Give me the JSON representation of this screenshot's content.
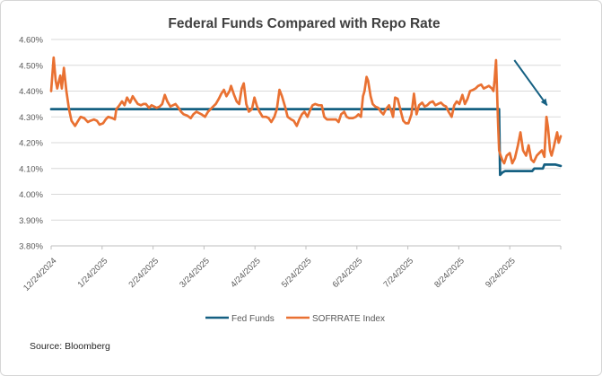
{
  "chart_data": {
    "type": "line",
    "title": "Federal Funds Compared with Repo Rate",
    "source_note": "Source: Bloomberg",
    "xlabel": "",
    "ylabel": "",
    "ylim": [
      3.8,
      4.6
    ],
    "grid": true,
    "legend_position": "bottom",
    "yticks": [
      {
        "value": 4.6,
        "label": "4.60%"
      },
      {
        "value": 4.5,
        "label": "4.50%"
      },
      {
        "value": 4.4,
        "label": "4.40%"
      },
      {
        "value": 4.3,
        "label": "4.30%"
      },
      {
        "value": 4.2,
        "label": "4.20%"
      },
      {
        "value": 4.1,
        "label": "4.10%"
      },
      {
        "value": 4.0,
        "label": "4.00%"
      },
      {
        "value": 3.9,
        "label": "3.90%"
      },
      {
        "value": 3.8,
        "label": "3.80%"
      }
    ],
    "categories": [
      "12/24/2024",
      "1/24/2025",
      "2/24/2025",
      "3/24/2025",
      "4/24/2025",
      "5/24/2025",
      "6/24/2025",
      "7/24/2025",
      "8/24/2025",
      "9/24/2025"
    ],
    "series": [
      {
        "name": "Fed Funds",
        "color": "#156082",
        "points": [
          [
            0.0,
            4.33
          ],
          [
            0.879,
            4.33
          ],
          [
            0.881,
            4.075
          ],
          [
            0.886,
            4.085
          ],
          [
            0.891,
            4.09
          ],
          [
            0.944,
            4.09
          ],
          [
            0.948,
            4.1
          ],
          [
            0.965,
            4.1
          ],
          [
            0.968,
            4.115
          ],
          [
            0.99,
            4.115
          ],
          [
            1.0,
            4.11
          ]
        ]
      },
      {
        "name": "SOFRRATE Index",
        "color": "#E97132",
        "points": [
          [
            0.0,
            4.4
          ],
          [
            0.005,
            4.53
          ],
          [
            0.009,
            4.44
          ],
          [
            0.012,
            4.41
          ],
          [
            0.018,
            4.46
          ],
          [
            0.021,
            4.41
          ],
          [
            0.025,
            4.49
          ],
          [
            0.03,
            4.4
          ],
          [
            0.035,
            4.33
          ],
          [
            0.04,
            4.285
          ],
          [
            0.047,
            4.265
          ],
          [
            0.053,
            4.285
          ],
          [
            0.058,
            4.3
          ],
          [
            0.065,
            4.295
          ],
          [
            0.072,
            4.28
          ],
          [
            0.077,
            4.285
          ],
          [
            0.084,
            4.29
          ],
          [
            0.09,
            4.285
          ],
          [
            0.095,
            4.27
          ],
          [
            0.102,
            4.275
          ],
          [
            0.107,
            4.29
          ],
          [
            0.112,
            4.3
          ],
          [
            0.12,
            4.295
          ],
          [
            0.125,
            4.29
          ],
          [
            0.128,
            4.33
          ],
          [
            0.134,
            4.345
          ],
          [
            0.139,
            4.36
          ],
          [
            0.144,
            4.345
          ],
          [
            0.149,
            4.375
          ],
          [
            0.155,
            4.355
          ],
          [
            0.16,
            4.38
          ],
          [
            0.165,
            4.365
          ],
          [
            0.17,
            4.35
          ],
          [
            0.176,
            4.345
          ],
          [
            0.181,
            4.35
          ],
          [
            0.186,
            4.35
          ],
          [
            0.192,
            4.335
          ],
          [
            0.197,
            4.345
          ],
          [
            0.202,
            4.34
          ],
          [
            0.207,
            4.335
          ],
          [
            0.213,
            4.34
          ],
          [
            0.218,
            4.35
          ],
          [
            0.223,
            4.385
          ],
          [
            0.228,
            4.36
          ],
          [
            0.234,
            4.34
          ],
          [
            0.239,
            4.345
          ],
          [
            0.244,
            4.35
          ],
          [
            0.25,
            4.335
          ],
          [
            0.255,
            4.32
          ],
          [
            0.26,
            4.31
          ],
          [
            0.267,
            4.305
          ],
          [
            0.274,
            4.295
          ],
          [
            0.279,
            4.31
          ],
          [
            0.285,
            4.32
          ],
          [
            0.29,
            4.315
          ],
          [
            0.295,
            4.31
          ],
          [
            0.302,
            4.3
          ],
          [
            0.308,
            4.32
          ],
          [
            0.313,
            4.33
          ],
          [
            0.318,
            4.34
          ],
          [
            0.323,
            4.35
          ],
          [
            0.329,
            4.37
          ],
          [
            0.334,
            4.39
          ],
          [
            0.339,
            4.405
          ],
          [
            0.344,
            4.38
          ],
          [
            0.35,
            4.4
          ],
          [
            0.353,
            4.42
          ],
          [
            0.359,
            4.385
          ],
          [
            0.364,
            4.36
          ],
          [
            0.369,
            4.35
          ],
          [
            0.374,
            4.41
          ],
          [
            0.378,
            4.43
          ],
          [
            0.383,
            4.35
          ],
          [
            0.388,
            4.32
          ],
          [
            0.394,
            4.33
          ],
          [
            0.399,
            4.375
          ],
          [
            0.404,
            4.34
          ],
          [
            0.409,
            4.32
          ],
          [
            0.415,
            4.3
          ],
          [
            0.422,
            4.3
          ],
          [
            0.427,
            4.295
          ],
          [
            0.432,
            4.28
          ],
          [
            0.438,
            4.3
          ],
          [
            0.443,
            4.33
          ],
          [
            0.448,
            4.405
          ],
          [
            0.453,
            4.38
          ],
          [
            0.459,
            4.34
          ],
          [
            0.464,
            4.3
          ],
          [
            0.471,
            4.29
          ],
          [
            0.476,
            4.285
          ],
          [
            0.482,
            4.265
          ],
          [
            0.487,
            4.29
          ],
          [
            0.492,
            4.31
          ],
          [
            0.497,
            4.32
          ],
          [
            0.503,
            4.3
          ],
          [
            0.508,
            4.325
          ],
          [
            0.513,
            4.345
          ],
          [
            0.518,
            4.35
          ],
          [
            0.525,
            4.345
          ],
          [
            0.531,
            4.345
          ],
          [
            0.536,
            4.3
          ],
          [
            0.541,
            4.29
          ],
          [
            0.548,
            4.29
          ],
          [
            0.554,
            4.29
          ],
          [
            0.559,
            4.29
          ],
          [
            0.564,
            4.28
          ],
          [
            0.569,
            4.31
          ],
          [
            0.575,
            4.32
          ],
          [
            0.58,
            4.3
          ],
          [
            0.585,
            4.295
          ],
          [
            0.592,
            4.295
          ],
          [
            0.598,
            4.3
          ],
          [
            0.603,
            4.31
          ],
          [
            0.608,
            4.3
          ],
          [
            0.612,
            4.38
          ],
          [
            0.615,
            4.4
          ],
          [
            0.619,
            4.455
          ],
          [
            0.622,
            4.44
          ],
          [
            0.627,
            4.38
          ],
          [
            0.631,
            4.35
          ],
          [
            0.636,
            4.34
          ],
          [
            0.642,
            4.335
          ],
          [
            0.647,
            4.32
          ],
          [
            0.652,
            4.31
          ],
          [
            0.657,
            4.33
          ],
          [
            0.663,
            4.345
          ],
          [
            0.668,
            4.32
          ],
          [
            0.671,
            4.3
          ],
          [
            0.675,
            4.375
          ],
          [
            0.68,
            4.37
          ],
          [
            0.685,
            4.33
          ],
          [
            0.691,
            4.285
          ],
          [
            0.696,
            4.275
          ],
          [
            0.701,
            4.275
          ],
          [
            0.707,
            4.31
          ],
          [
            0.712,
            4.39
          ],
          [
            0.717,
            4.31
          ],
          [
            0.722,
            4.345
          ],
          [
            0.728,
            4.355
          ],
          [
            0.733,
            4.34
          ],
          [
            0.738,
            4.345
          ],
          [
            0.743,
            4.355
          ],
          [
            0.749,
            4.36
          ],
          [
            0.754,
            4.345
          ],
          [
            0.759,
            4.35
          ],
          [
            0.765,
            4.355
          ],
          [
            0.77,
            4.345
          ],
          [
            0.775,
            4.34
          ],
          [
            0.78,
            4.32
          ],
          [
            0.786,
            4.3
          ],
          [
            0.791,
            4.345
          ],
          [
            0.796,
            4.36
          ],
          [
            0.801,
            4.35
          ],
          [
            0.807,
            4.385
          ],
          [
            0.812,
            4.35
          ],
          [
            0.817,
            4.37
          ],
          [
            0.822,
            4.4
          ],
          [
            0.828,
            4.405
          ],
          [
            0.833,
            4.41
          ],
          [
            0.838,
            4.42
          ],
          [
            0.844,
            4.425
          ],
          [
            0.849,
            4.41
          ],
          [
            0.854,
            4.415
          ],
          [
            0.859,
            4.42
          ],
          [
            0.865,
            4.41
          ],
          [
            0.868,
            4.4
          ],
          [
            0.87,
            4.44
          ],
          [
            0.873,
            4.52
          ],
          [
            0.877,
            4.28
          ],
          [
            0.879,
            4.17
          ],
          [
            0.882,
            4.15
          ],
          [
            0.886,
            4.13
          ],
          [
            0.889,
            4.12
          ],
          [
            0.894,
            4.15
          ],
          [
            0.9,
            4.16
          ],
          [
            0.905,
            4.12
          ],
          [
            0.91,
            4.14
          ],
          [
            0.916,
            4.19
          ],
          [
            0.921,
            4.24
          ],
          [
            0.926,
            4.17
          ],
          [
            0.932,
            4.15
          ],
          [
            0.937,
            4.19
          ],
          [
            0.942,
            4.135
          ],
          [
            0.947,
            4.125
          ],
          [
            0.953,
            4.15
          ],
          [
            0.958,
            4.16
          ],
          [
            0.963,
            4.17
          ],
          [
            0.968,
            4.145
          ],
          [
            0.972,
            4.3
          ],
          [
            0.975,
            4.26
          ],
          [
            0.979,
            4.17
          ],
          [
            0.982,
            4.15
          ],
          [
            0.986,
            4.18
          ],
          [
            0.99,
            4.215
          ],
          [
            0.993,
            4.24
          ],
          [
            0.996,
            4.2
          ],
          [
            1.0,
            4.225
          ]
        ]
      }
    ],
    "annotation": {
      "type": "arrow",
      "color": "#156082",
      "from": [
        0.909,
        4.52
      ],
      "to": [
        0.973,
        4.345
      ]
    }
  }
}
